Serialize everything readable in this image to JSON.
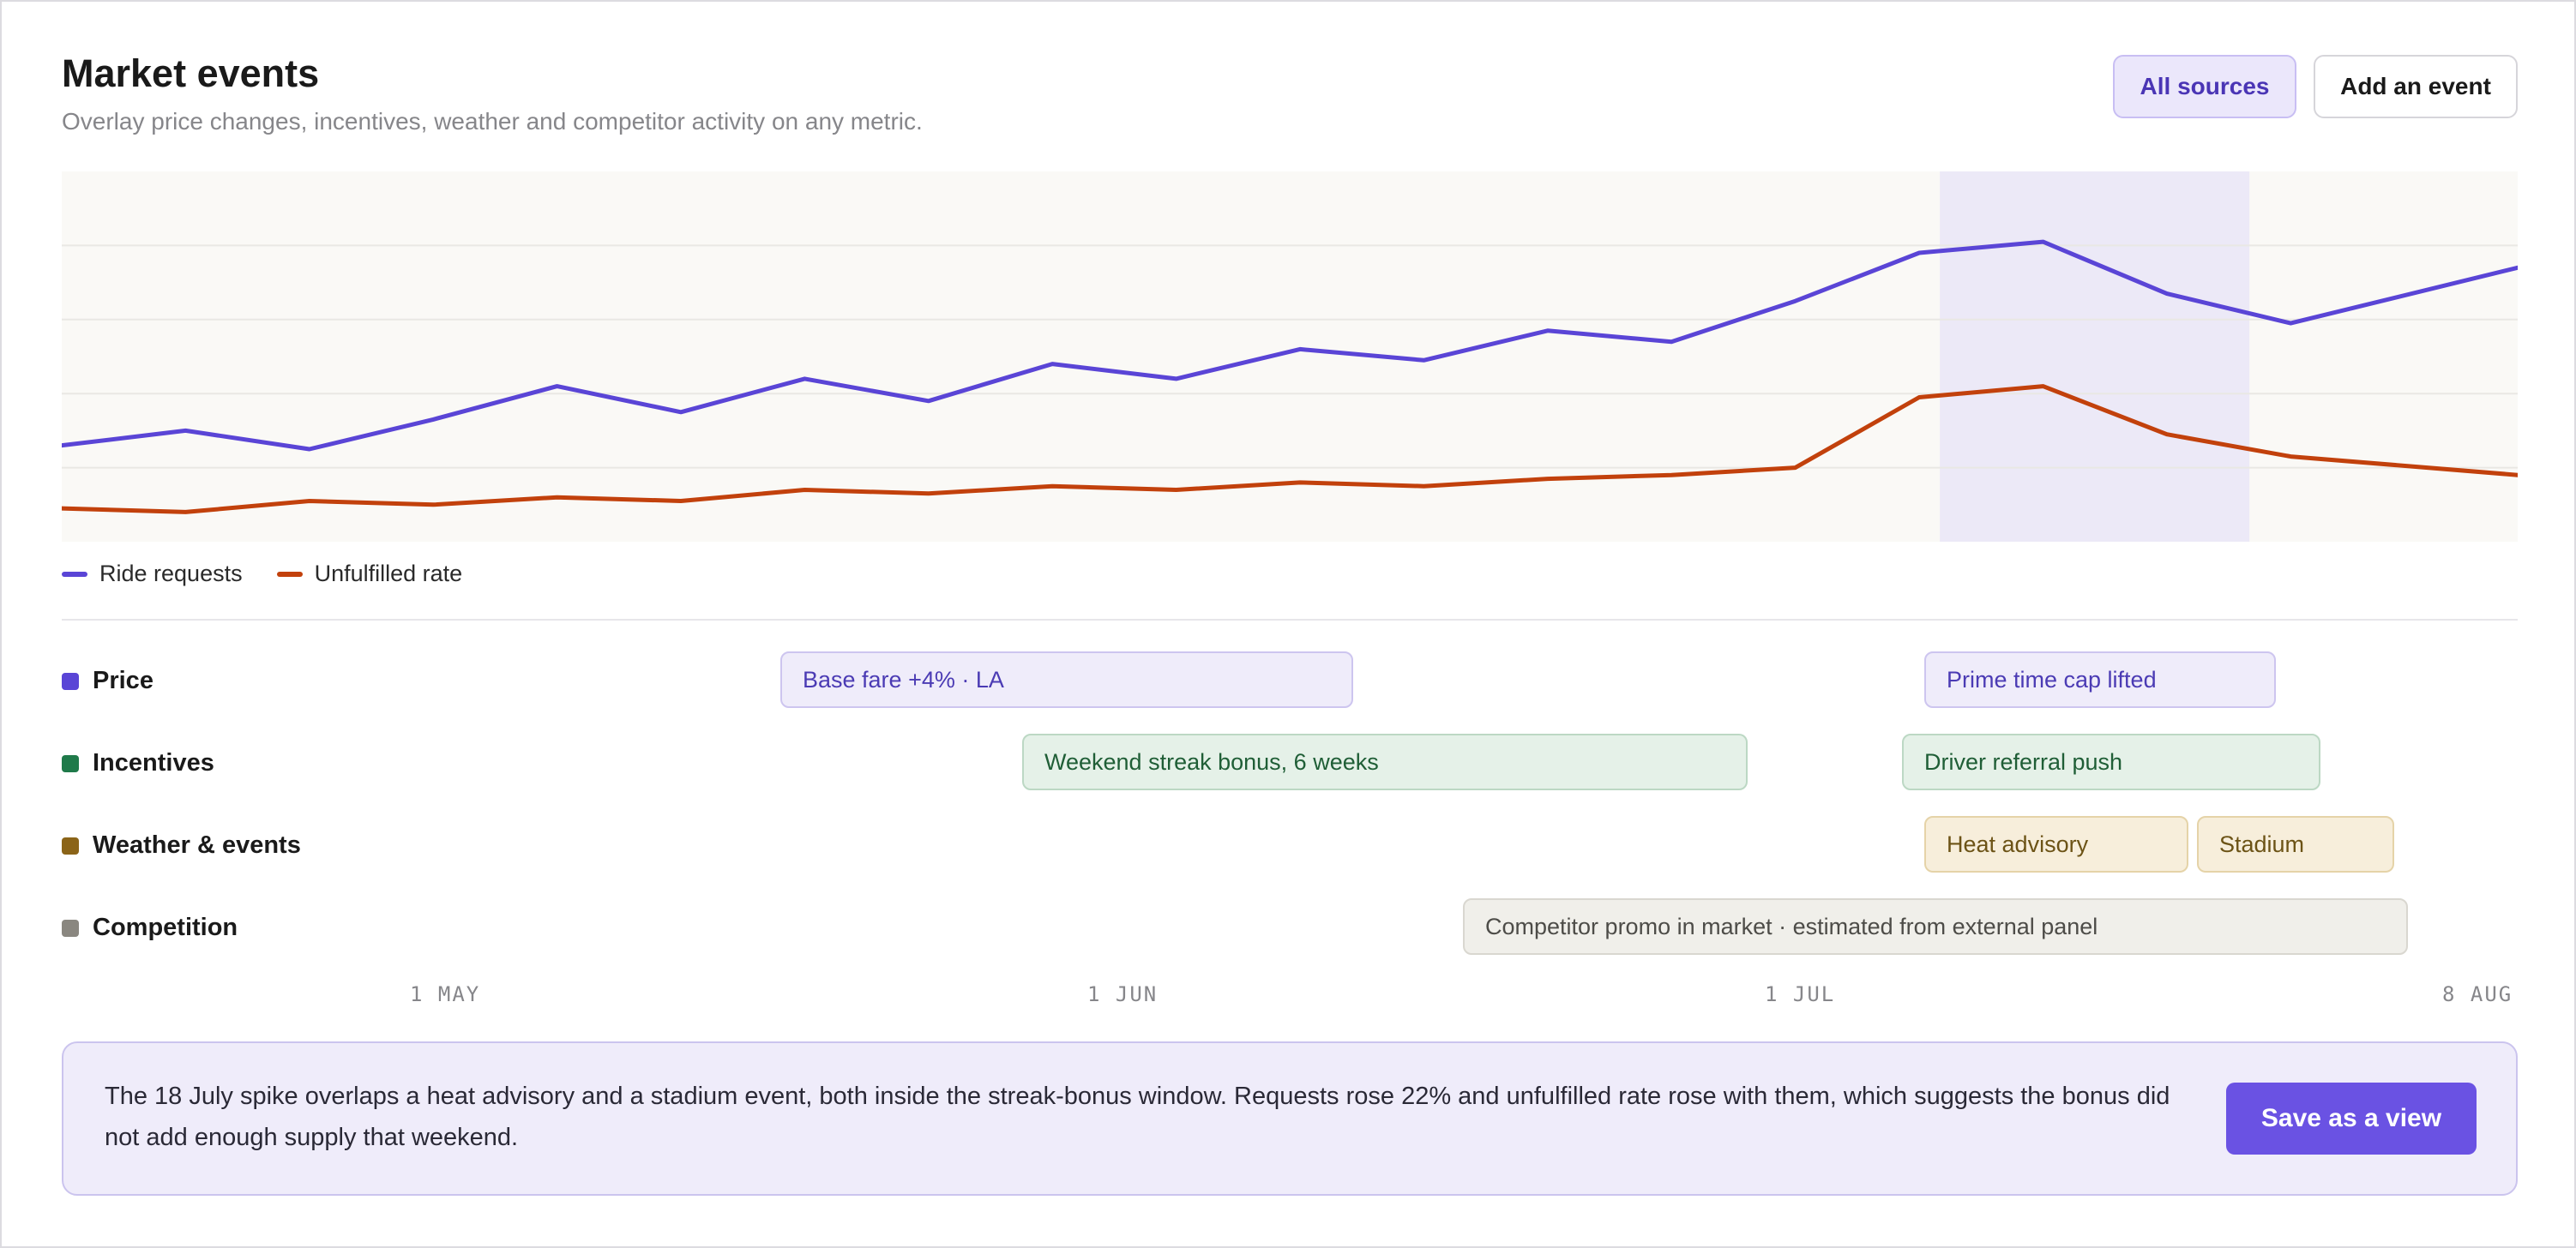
{
  "header": {
    "title": "Market events",
    "subtitle": "Overlay price changes, incentives, weather and competitor activity on any metric.",
    "sources_button": "All sources",
    "add_button": "Add an event"
  },
  "chart_data": {
    "type": "line",
    "x_range": [
      "2025-04-11",
      "2025-08-08"
    ],
    "x_ticks": [
      "1 MAY",
      "1 JUN",
      "1 JUL",
      "8 AUG"
    ],
    "highlight_range": [
      "2025-07-11",
      "2025-07-26"
    ],
    "y_range": [
      0,
      100
    ],
    "grid": true,
    "legend": "bottom-left",
    "series": [
      {
        "name": "Ride requests",
        "color": "#5a45d6",
        "x": [
          "2025-04-11",
          "2025-04-17",
          "2025-04-23",
          "2025-04-29",
          "2025-05-05",
          "2025-05-11",
          "2025-05-17",
          "2025-05-23",
          "2025-05-29",
          "2025-06-04",
          "2025-06-10",
          "2025-06-16",
          "2025-06-22",
          "2025-06-28",
          "2025-07-04",
          "2025-07-10",
          "2025-07-16",
          "2025-07-22",
          "2025-07-28",
          "2025-08-08"
        ],
        "y": [
          26,
          30,
          25,
          33,
          42,
          35,
          44,
          38,
          48,
          44,
          52,
          49,
          57,
          54,
          65,
          78,
          81,
          67,
          59,
          74
        ]
      },
      {
        "name": "Unfulfilled rate",
        "color": "#c2410c",
        "x": [
          "2025-04-11",
          "2025-04-17",
          "2025-04-23",
          "2025-04-29",
          "2025-05-05",
          "2025-05-11",
          "2025-05-17",
          "2025-05-23",
          "2025-05-29",
          "2025-06-04",
          "2025-06-10",
          "2025-06-16",
          "2025-06-22",
          "2025-06-28",
          "2025-07-04",
          "2025-07-10",
          "2025-07-16",
          "2025-07-22",
          "2025-07-28",
          "2025-08-08"
        ],
        "y": [
          9,
          8,
          11,
          10,
          12,
          11,
          14,
          13,
          15,
          14,
          16,
          15,
          17,
          18,
          20,
          39,
          42,
          29,
          23,
          18
        ]
      }
    ]
  },
  "lanes": [
    {
      "label": "Price",
      "color": "#5a45d6",
      "kind": "price",
      "events": [
        {
          "label": "Base fare +4% · LA"
        },
        {
          "label": "Prime time cap lifted"
        }
      ]
    },
    {
      "label": "Incentives",
      "color": "#1f7a4a",
      "kind": "inc",
      "events": [
        {
          "label": "Weekend streak bonus, 6 weeks"
        },
        {
          "label": "Driver referral push"
        }
      ]
    },
    {
      "label": "Weather & events",
      "color": "#8b6418",
      "kind": "wx",
      "events": [
        {
          "label": "Heat advisory"
        },
        {
          "label": "Stadium"
        }
      ]
    },
    {
      "label": "Competition",
      "color": "#8a8780",
      "kind": "comp",
      "events": [
        {
          "label": "Competitor promo in market · estimated from external panel"
        }
      ]
    }
  ],
  "axis_labels": [
    "1 MAY",
    "1 JUN",
    "1 JUL",
    "8 AUG"
  ],
  "insight": {
    "text": "The 18 July spike overlaps a heat advisory and a stadium event, both inside the streak-bonus window. Requests rose 22% and unfulfilled rate rose with them, which suggests the bonus did not add enough supply that weekend.",
    "button": "Save as a view"
  }
}
